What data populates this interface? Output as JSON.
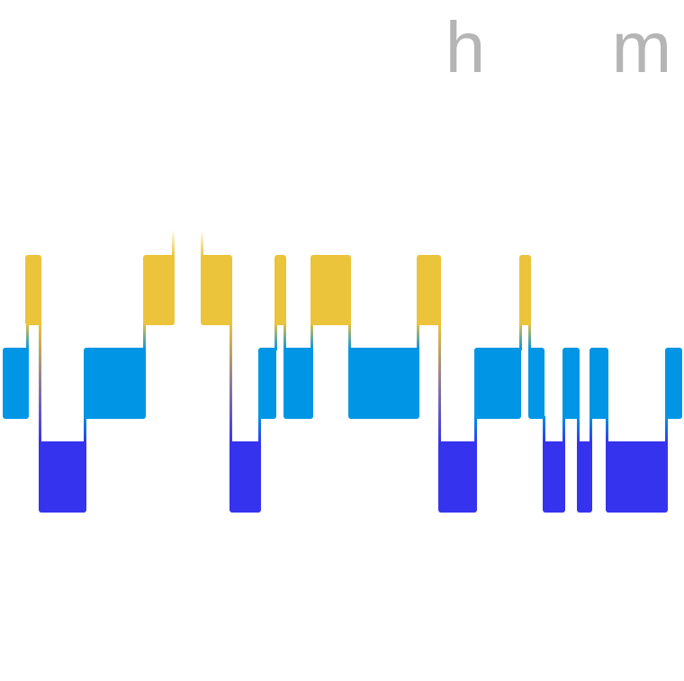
{
  "duration": {
    "hours_unit": "h",
    "minutes_unit": "m"
  }
}
